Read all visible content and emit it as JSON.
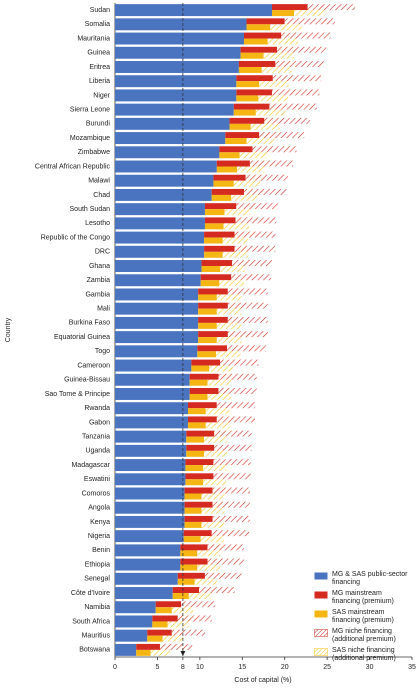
{
  "chart_data": {
    "type": "stacked_hbar_pair",
    "xlabel": "Cost of capital (%)",
    "ylabel": "Country",
    "xlim": [
      0,
      35
    ],
    "xticks": [
      0,
      5,
      8,
      10,
      15,
      20,
      25,
      30,
      35
    ],
    "reference_line": 8,
    "categories": [
      "Sudan",
      "Somalia",
      "Mauritania",
      "Guinea",
      "Eritrea",
      "Liberia",
      "Niger",
      "Sierra Leone",
      "Burundi",
      "Mozambique",
      "Zimbabwe",
      "Central African Republic",
      "Malawi",
      "Chad",
      "South Sudan",
      "Lesotho",
      "Republic of the Congo",
      "DRC",
      "Ghana",
      "Zambia",
      "Gambia",
      "Mali",
      "Burkina Faso",
      "Equatorial Guinea",
      "Togo",
      "Cameroon",
      "Guinea-Bissau",
      "Sao Tome & Principe",
      "Rwanda",
      "Gabon",
      "Tanzania",
      "Uganda",
      "Madagascar",
      "Eswatini",
      "Comoros",
      "Angola",
      "Kenya",
      "Nigeria",
      "Benin",
      "Ethiopia",
      "Senegal",
      "Côte d'Ivoire",
      "Namibia",
      "South Africa",
      "Mauritius",
      "Botswana"
    ],
    "series": [
      {
        "name": "MG & SAS public-sector financing",
        "color": "#4a74c0",
        "hatch": false,
        "values": [
          18.5,
          15.5,
          15.2,
          14.8,
          14.6,
          14.3,
          14.3,
          14.0,
          13.5,
          13.0,
          12.3,
          12.0,
          11.6,
          11.4,
          10.6,
          10.6,
          10.5,
          10.5,
          10.2,
          10.1,
          9.8,
          9.8,
          9.8,
          9.8,
          9.7,
          9.0,
          8.8,
          8.8,
          8.6,
          8.6,
          8.4,
          8.4,
          8.3,
          8.3,
          8.2,
          8.2,
          8.2,
          8.1,
          7.7,
          7.7,
          7.4,
          6.8,
          4.8,
          4.4,
          3.8,
          2.5
        ]
      },
      {
        "name": "MG mainstream financing (premium)",
        "color": "#d42a20",
        "hatch": false,
        "values": [
          4.2,
          4.5,
          4.4,
          4.3,
          4.3,
          4.3,
          4.2,
          4.2,
          4.1,
          4.0,
          3.9,
          3.9,
          3.8,
          3.8,
          3.7,
          3.6,
          3.6,
          3.6,
          3.6,
          3.6,
          3.5,
          3.5,
          3.5,
          3.5,
          3.5,
          3.4,
          3.4,
          3.4,
          3.4,
          3.4,
          3.3,
          3.3,
          3.3,
          3.3,
          3.3,
          3.3,
          3.3,
          3.3,
          3.2,
          3.2,
          3.2,
          3.1,
          3.0,
          3.0,
          2.9,
          2.8
        ]
      },
      {
        "name": "SAS mainstream financing (premium)",
        "color": "#f5b614",
        "hatch": false,
        "values": [
          2.6,
          2.8,
          2.8,
          2.7,
          2.7,
          2.7,
          2.6,
          2.6,
          2.5,
          2.5,
          2.4,
          2.4,
          2.4,
          2.3,
          2.3,
          2.2,
          2.2,
          2.2,
          2.2,
          2.2,
          2.2,
          2.2,
          2.2,
          2.2,
          2.2,
          2.1,
          2.1,
          2.1,
          2.1,
          2.1,
          2.1,
          2.1,
          2.1,
          2.1,
          2.0,
          2.0,
          2.0,
          2.0,
          2.0,
          2.0,
          2.0,
          1.9,
          1.9,
          1.8,
          1.8,
          1.7
        ]
      },
      {
        "name": "MG niche financing (additional premium)",
        "color": "#d42a20",
        "hatch": true,
        "values": [
          5.6,
          5.9,
          5.8,
          5.8,
          5.7,
          5.7,
          5.6,
          5.6,
          5.4,
          5.3,
          5.2,
          5.1,
          5.0,
          5.0,
          4.9,
          4.8,
          4.8,
          4.8,
          4.7,
          4.7,
          4.7,
          4.7,
          4.7,
          4.7,
          4.6,
          4.5,
          4.5,
          4.5,
          4.5,
          4.5,
          4.4,
          4.4,
          4.4,
          4.4,
          4.4,
          4.4,
          4.4,
          4.4,
          4.3,
          4.3,
          4.3,
          4.2,
          4.0,
          4.0,
          3.9,
          3.8
        ]
      },
      {
        "name": "SAS niche financing (additional premium)",
        "color": "#f5c518",
        "hatch": true,
        "values": [
          3.6,
          3.7,
          3.6,
          3.6,
          3.5,
          3.5,
          3.5,
          3.5,
          3.4,
          3.3,
          3.2,
          3.2,
          3.1,
          3.1,
          3.0,
          3.0,
          3.0,
          3.0,
          2.9,
          2.9,
          2.9,
          2.9,
          2.9,
          2.9,
          2.9,
          2.8,
          2.8,
          2.8,
          2.8,
          2.8,
          2.7,
          2.7,
          2.7,
          2.7,
          2.7,
          2.7,
          2.7,
          2.7,
          2.7,
          2.7,
          2.6,
          2.6,
          2.5,
          2.5,
          2.4,
          2.3
        ]
      }
    ]
  }
}
